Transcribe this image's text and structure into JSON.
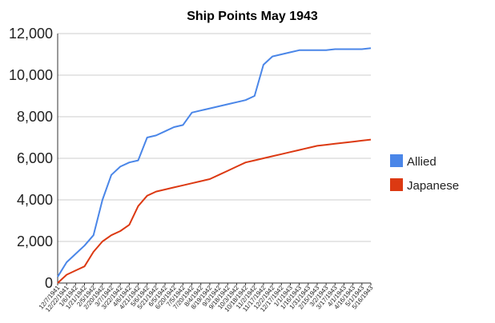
{
  "chart_data": {
    "type": "line",
    "title": "Ship Points May 1943",
    "xlabel": "",
    "ylabel": "",
    "ylim": [
      0,
      12000
    ],
    "yticks": [
      "0",
      "2,000",
      "4,000",
      "6,000",
      "8,000",
      "10,000",
      "12,000"
    ],
    "ytick_values": [
      0,
      2000,
      4000,
      6000,
      8000,
      10000,
      12000
    ],
    "grid": true,
    "legend_position": "right",
    "categories": [
      "12/7/1941",
      "12/22/1941",
      "1/6/1942",
      "1/21/1942",
      "2/5/1942",
      "2/20/1942",
      "3/7/1942",
      "3/22/1942",
      "4/6/1942",
      "4/21/1942",
      "5/6/1942",
      "5/21/1942",
      "6/5/1942",
      "6/20/1942",
      "7/5/1942",
      "7/20/1942",
      "8/4/1942",
      "8/19/1942",
      "9/3/1942",
      "9/18/1942",
      "10/3/1942",
      "10/18/1942",
      "11/2/1942",
      "11/17/1942",
      "12/2/1942",
      "12/17/1942",
      "1/1/1943",
      "1/16/1943",
      "1/31/1943",
      "2/15/1943",
      "3/2/1943",
      "3/17/1943",
      "4/1/1943",
      "4/16/1943",
      "5/1/1943",
      "5/16/1943"
    ],
    "series": [
      {
        "name": "Allied",
        "color": "#4a86e8",
        "values": [
          300,
          1000,
          1400,
          1800,
          2300,
          4000,
          5200,
          5600,
          5800,
          5900,
          7000,
          7100,
          7300,
          7500,
          7600,
          8200,
          8300,
          8400,
          8500,
          8600,
          8700,
          8800,
          9000,
          10500,
          10900,
          11000,
          11100,
          11200,
          11200,
          11200,
          11200,
          11250,
          11250,
          11250,
          11250,
          11300
        ]
      },
      {
        "name": "Japanese",
        "color": "#dc3912",
        "values": [
          0,
          400,
          600,
          800,
          1500,
          2000,
          2300,
          2500,
          2800,
          3700,
          4200,
          4400,
          4500,
          4600,
          4700,
          4800,
          4900,
          5000,
          5200,
          5400,
          5600,
          5800,
          5900,
          6000,
          6100,
          6200,
          6300,
          6400,
          6500,
          6600,
          6650,
          6700,
          6750,
          6800,
          6850,
          6900
        ]
      }
    ]
  }
}
